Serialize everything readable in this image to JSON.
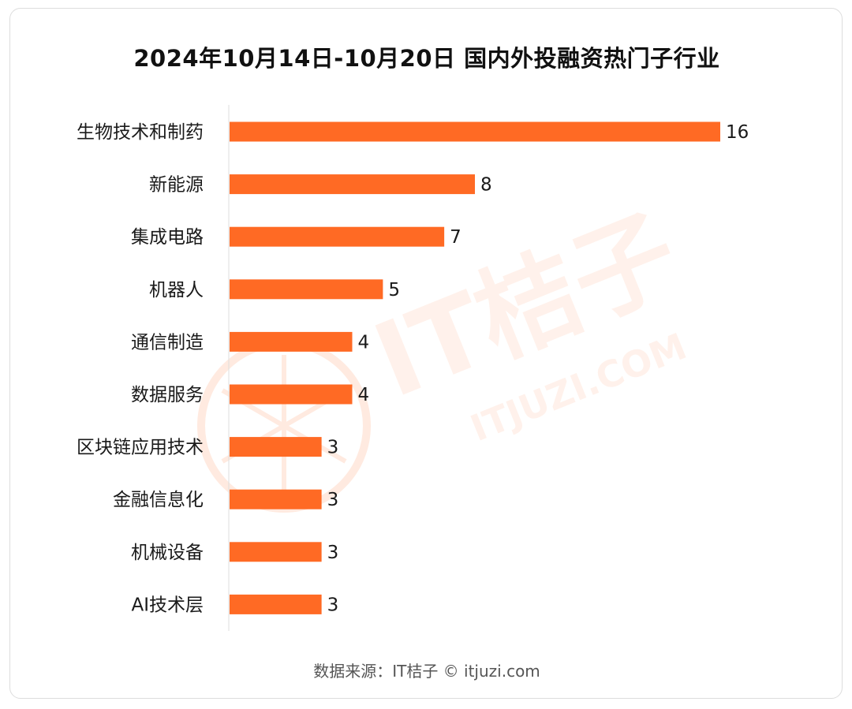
{
  "title": "2024年10月14日-10月20日 国内外投融资热门子行业",
  "footer": "数据来源：IT桔子 © itjuzi.com",
  "watermark": {
    "brand": "IT桔子",
    "url": "ITJUZI.COM"
  },
  "colors": {
    "bar": "#ff6a24",
    "watermark": "#ffe3d6"
  },
  "chart_data": {
    "type": "bar",
    "orientation": "horizontal",
    "categories": [
      "生物技术和制药",
      "新能源",
      "集成电路",
      "机器人",
      "通信制造",
      "数据服务",
      "区块链应用技术",
      "金融信息化",
      "机械设备",
      "AI技术层"
    ],
    "values": [
      16,
      8,
      7,
      5,
      4,
      4,
      3,
      3,
      3,
      3
    ],
    "title": "2024年10月14日-10月20日 国内外投融资热门子行业",
    "xlabel": "",
    "ylabel": "",
    "xlim": [
      0,
      16
    ],
    "grid": false,
    "legend": "none",
    "data_labels": true
  }
}
